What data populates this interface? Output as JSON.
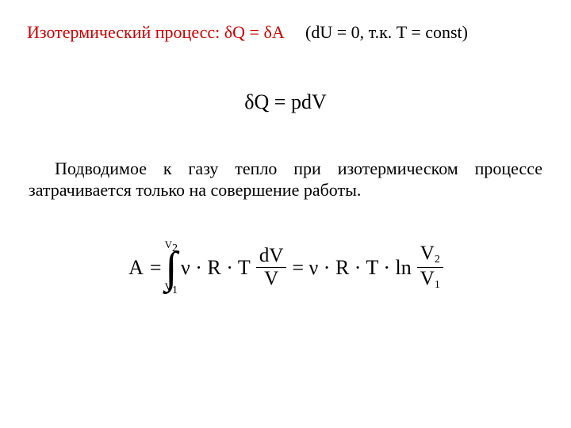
{
  "header": {
    "label": "Изотермический процесс:",
    "equation_lhs": "δQ",
    "equation_eq": " = ",
    "equation_rhs": "δA",
    "condition": "(dU = 0, т.к. T = const)",
    "label_color": "#cc0000",
    "eq_color": "#cc0000",
    "condition_color": "#000000"
  },
  "equation1": {
    "text": "δQ = pdV",
    "fontsize": 26,
    "color": "#000000"
  },
  "paragraph": {
    "text": "Подводимое к газу тепло при изотермическом процессе затрачивается только на совершение работы."
  },
  "equation2": {
    "A": "A",
    "eq": "=",
    "int_lower": "V",
    "int_lower_sub": "1",
    "int_upper": "V",
    "int_upper_sub": "2",
    "integrand_pre": "ν · R · T",
    "frac1_num": "dV",
    "frac1_den": "V",
    "mid": "= ν · R · T · ln",
    "frac2_num_base": "V",
    "frac2_num_sub": "2",
    "frac2_den_base": "V",
    "frac2_den_sub": "1",
    "fontsize": 26,
    "color": "#000000"
  }
}
